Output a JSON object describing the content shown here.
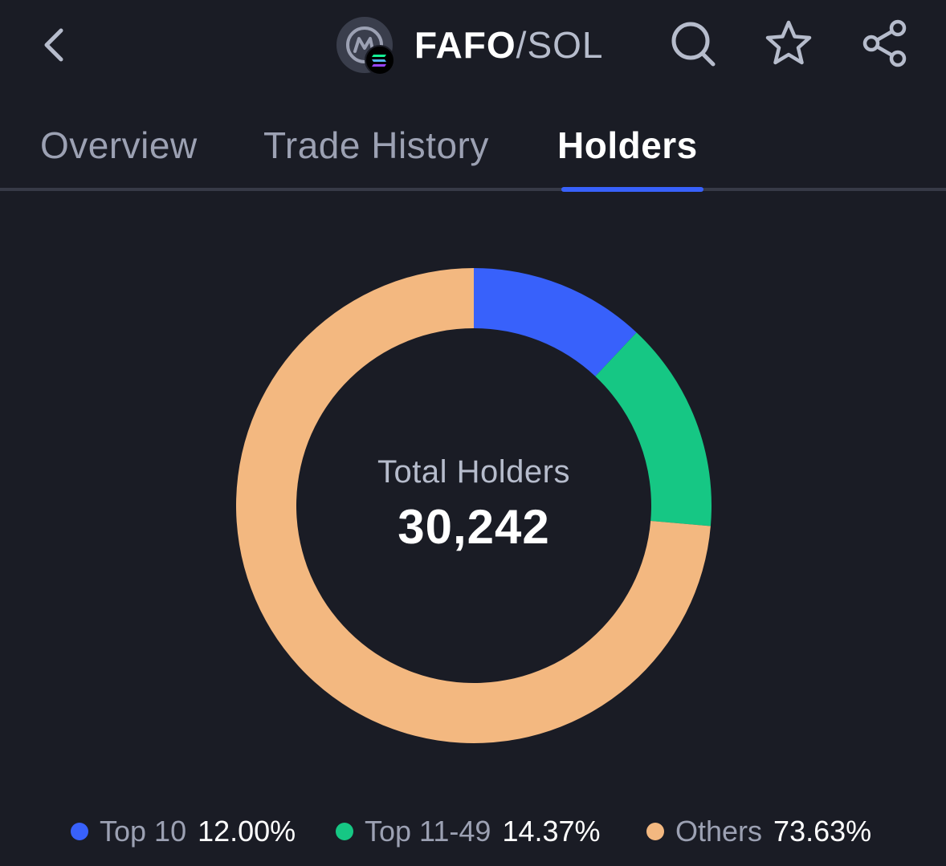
{
  "header": {
    "base_symbol": "FAFO",
    "quote_symbol": "/SOL",
    "icons": {
      "back": "chevron-left-icon",
      "logo": "coinmarketcap-logo-icon",
      "chain_badge": "solana-icon",
      "search": "search-icon",
      "watchlist": "star-icon",
      "share": "share-icon"
    }
  },
  "tabs": [
    {
      "label": "Overview",
      "active": false
    },
    {
      "label": "Trade History",
      "active": false
    },
    {
      "label": "Holders",
      "active": true
    }
  ],
  "holders": {
    "center_label": "Total Holders",
    "center_value": "30,242"
  },
  "colors": {
    "background": "#1a1c25",
    "accent": "#3861fb",
    "top10": "#3861fb",
    "top11_49": "#16c784",
    "others": "#f3b880"
  },
  "chart_data": {
    "type": "pie",
    "style": "donut",
    "categories": [
      "Top 10",
      "Top 11-49",
      "Others"
    ],
    "values": [
      12.0,
      14.37,
      73.63
    ],
    "value_labels": [
      "12.00%",
      "14.37%",
      "73.63%"
    ],
    "colors": [
      "#3861fb",
      "#16c784",
      "#f3b880"
    ],
    "legend_position": "bottom"
  }
}
